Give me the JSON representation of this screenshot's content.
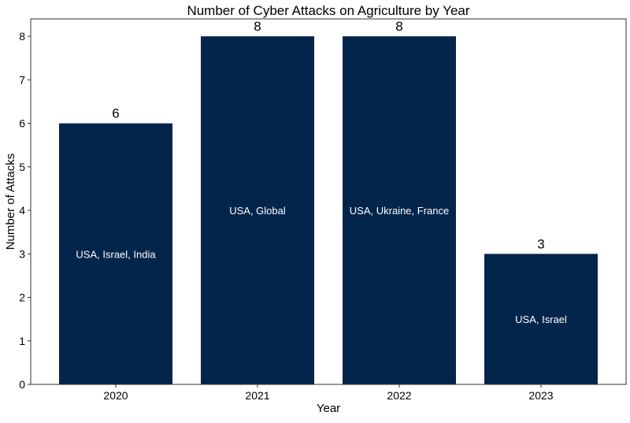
{
  "chart_data": {
    "type": "bar",
    "title": "Number of Cyber Attacks on Agriculture by Year",
    "xlabel": "Year",
    "ylabel": "Number of Attacks",
    "categories": [
      "2020",
      "2021",
      "2022",
      "2023"
    ],
    "values": [
      6,
      8,
      8,
      3
    ],
    "bar_annotations": [
      "USA, Israel, India",
      "USA, Global",
      "USA, Ukraine, France",
      "USA, Israel"
    ],
    "ylim": [
      0,
      8.4
    ],
    "yticks": [
      0,
      1,
      2,
      3,
      4,
      5,
      6,
      7,
      8
    ],
    "grid": false,
    "bar_color": "#03254c",
    "annotation_color": "#ffffff"
  }
}
